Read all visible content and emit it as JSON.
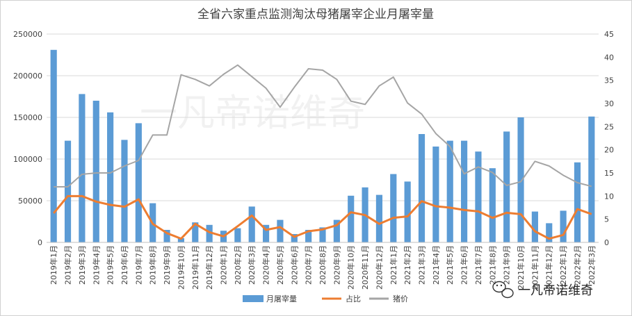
{
  "chart_data": {
    "type": "bar",
    "title": "全省六家重点监测淘汰母猪屠宰企业月屠宰量",
    "categories": [
      "2019年1月",
      "2019年2月",
      "2019年3月",
      "2019年4月",
      "2019年5月",
      "2019年6月",
      "2019年7月",
      "2019年8月",
      "2019年9月",
      "2019年10月",
      "2019年11月",
      "2019年12月",
      "2020年1月",
      "2020年2月",
      "2020年3月",
      "2020年4月",
      "2020年5月",
      "2020年6月",
      "2020年7月",
      "2020年8月",
      "2020年9月",
      "2020年10月",
      "2020年11月",
      "2020年12月",
      "2021年1月",
      "2021年2月",
      "2021年3月",
      "2021年4月",
      "2021年5月",
      "2021年6月",
      "2021年7月",
      "2021年8月",
      "2021年9月",
      "2021年10月",
      "2021年11月",
      "2021年12月",
      "2022年1月",
      "2022年2月",
      "2022年3月"
    ],
    "series": [
      {
        "name": "月屠宰量",
        "type": "bar",
        "axis": "left",
        "color": "#5B9BD5",
        "values": [
          231000,
          122000,
          178000,
          170000,
          156000,
          123000,
          143000,
          47000,
          15000,
          5000,
          24000,
          21000,
          14000,
          17000,
          43000,
          21000,
          27000,
          10000,
          15000,
          18000,
          27000,
          56000,
          66000,
          57000,
          82000,
          73000,
          130000,
          115000,
          122000,
          122000,
          109000,
          89000,
          133000,
          150000,
          37000,
          23000,
          38000,
          96000,
          151000
        ]
      },
      {
        "name": "占比",
        "type": "line",
        "axis": "right",
        "color": "#ED7D31",
        "values": [
          6.3,
          10,
          10,
          8.8,
          8.1,
          7.7,
          9.3,
          4,
          2,
          0.8,
          4,
          2.2,
          1.3,
          3.5,
          5.8,
          2.7,
          3.3,
          1.2,
          2.4,
          2.8,
          3.7,
          6.5,
          5.9,
          4,
          5.3,
          5.6,
          8.9,
          7.8,
          7.5,
          7,
          6.7,
          5.3,
          6.4,
          6.1,
          2.4,
          0.8,
          1.6,
          7.2,
          6.1
        ]
      },
      {
        "name": "猪价",
        "type": "line",
        "axis": "right",
        "color": "#A5A5A5",
        "values": [
          12,
          12,
          14.7,
          15,
          15,
          16.5,
          17.7,
          23.2,
          23.2,
          36.2,
          35.2,
          33.8,
          36.3,
          38.3,
          35.8,
          33.3,
          29.2,
          33.5,
          37.5,
          37.2,
          35.2,
          30.5,
          29.8,
          33.8,
          35.7,
          30.1,
          27.7,
          23.5,
          20.7,
          14.8,
          16.3,
          15.1,
          12.3,
          13.1,
          17.5,
          16.5,
          14.5,
          12.9,
          12.1
        ]
      }
    ],
    "ylim_left": [
      0,
      250000
    ],
    "yticks_left": [
      "0",
      "50000",
      "100000",
      "150000",
      "200000",
      "250000"
    ],
    "ylim_right": [
      0,
      45
    ],
    "yticks_right": [
      "0",
      "5",
      "10",
      "15",
      "20",
      "25",
      "30",
      "35",
      "40",
      "45"
    ],
    "legend_position": "bottom",
    "grid": true
  },
  "watermark": "一凡帝诺维奇",
  "logo_text": "一凡帝诺维奇"
}
